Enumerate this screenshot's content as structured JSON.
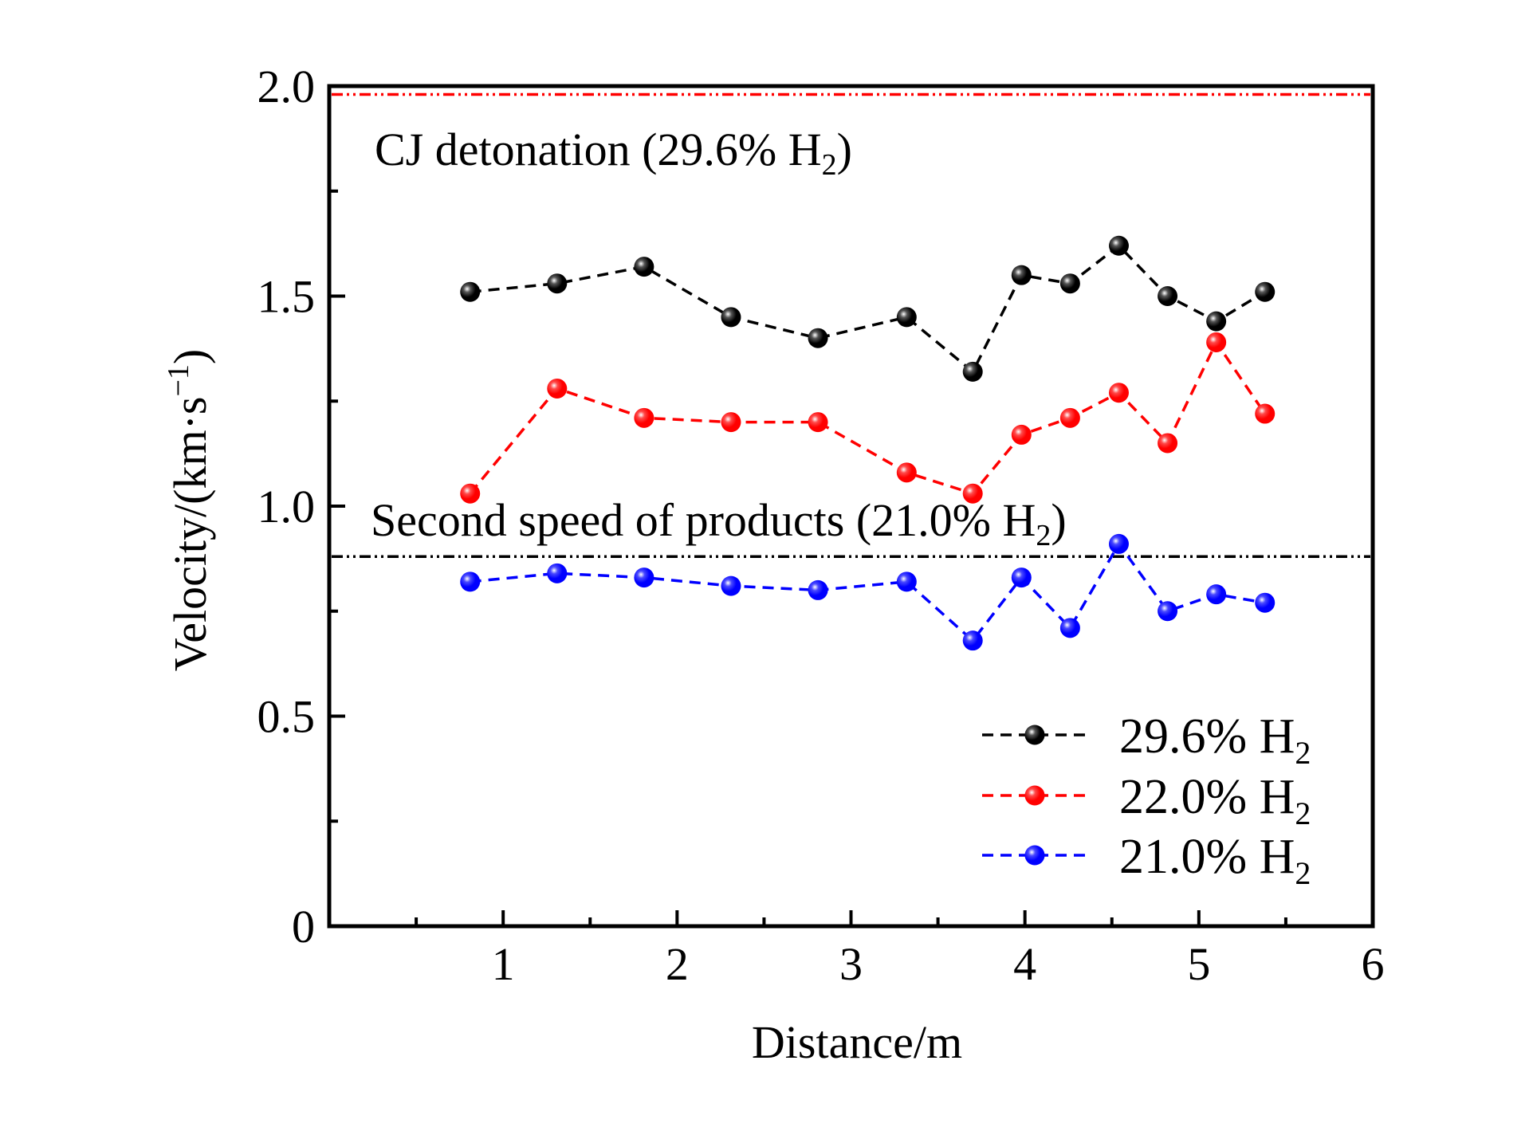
{
  "chart_data": {
    "type": "line",
    "title": "",
    "xlabel": "Distance/m",
    "ylabel": "Velocity/(km·s⁻¹)",
    "xlim": [
      0,
      6
    ],
    "ylim": [
      0,
      2.0
    ],
    "x_ticks": [
      1,
      2,
      3,
      4,
      5,
      6
    ],
    "x_tick_labels": [
      "1",
      "2",
      "3",
      "4",
      "5",
      "6"
    ],
    "x_minor_ticks": [
      0.5,
      1.5,
      2.5,
      3.5,
      4.5,
      5.5
    ],
    "y_ticks": [
      0,
      0.5,
      1.0,
      1.5,
      2.0
    ],
    "y_tick_labels": [
      "0",
      "0.5",
      "1.0",
      "1.5",
      "2.0"
    ],
    "y_minor_ticks": [
      0.25,
      0.75,
      1.25,
      1.75
    ],
    "grid": false,
    "legend_position": "bottom-right",
    "series": [
      {
        "name": "29.6% H2",
        "label_main": "29.6% H",
        "label_sub": "2",
        "color": "#000000",
        "x": [
          0.81,
          1.31,
          1.81,
          2.31,
          2.81,
          3.32,
          3.7,
          3.98,
          4.26,
          4.54,
          4.82,
          5.1,
          5.38
        ],
        "y": [
          1.51,
          1.53,
          1.57,
          1.45,
          1.4,
          1.45,
          1.32,
          1.55,
          1.53,
          1.62,
          1.5,
          1.44,
          1.51
        ]
      },
      {
        "name": "22.0% H2",
        "label_main": "22.0% H",
        "label_sub": "2",
        "color": "#ff0000",
        "x": [
          0.81,
          1.31,
          1.81,
          2.31,
          2.81,
          3.32,
          3.7,
          3.98,
          4.26,
          4.54,
          4.82,
          5.1,
          5.38
        ],
        "y": [
          1.03,
          1.28,
          1.21,
          1.2,
          1.2,
          1.08,
          1.03,
          1.17,
          1.21,
          1.27,
          1.15,
          1.39,
          1.22
        ]
      },
      {
        "name": "21.0% H2",
        "label_main": "21.0% H",
        "label_sub": "2",
        "color": "#0000ff",
        "x": [
          0.81,
          1.31,
          1.81,
          2.31,
          2.81,
          3.32,
          3.7,
          3.98,
          4.26,
          4.54,
          4.82,
          5.1,
          5.38
        ],
        "y": [
          0.82,
          0.84,
          0.83,
          0.81,
          0.8,
          0.82,
          0.68,
          0.83,
          0.71,
          0.91,
          0.75,
          0.79,
          0.77
        ]
      }
    ],
    "reference_lines": [
      {
        "name": "CJ detonation (29.6% H2)",
        "y": 1.98,
        "color": "#ff0000",
        "style": "dash-dot-dot"
      },
      {
        "name": "Second speed of products (21.0% H2)",
        "y": 0.88,
        "color": "#000000",
        "style": "dash-dot-dot"
      }
    ],
    "annotations": [
      {
        "text_main": "CJ detonation (29.6% H",
        "text_sub": "2",
        "text_end": ")",
        "x": 0.32,
        "y": 1.84
      },
      {
        "text_main": "Second speed of products (21.0% H",
        "text_sub": "2",
        "text_end": ")",
        "x": 0.3,
        "y": 0.93
      }
    ],
    "ylabel_main": "Velocity/(km·s",
    "ylabel_sup": "−1",
    "ylabel_end": ")"
  }
}
